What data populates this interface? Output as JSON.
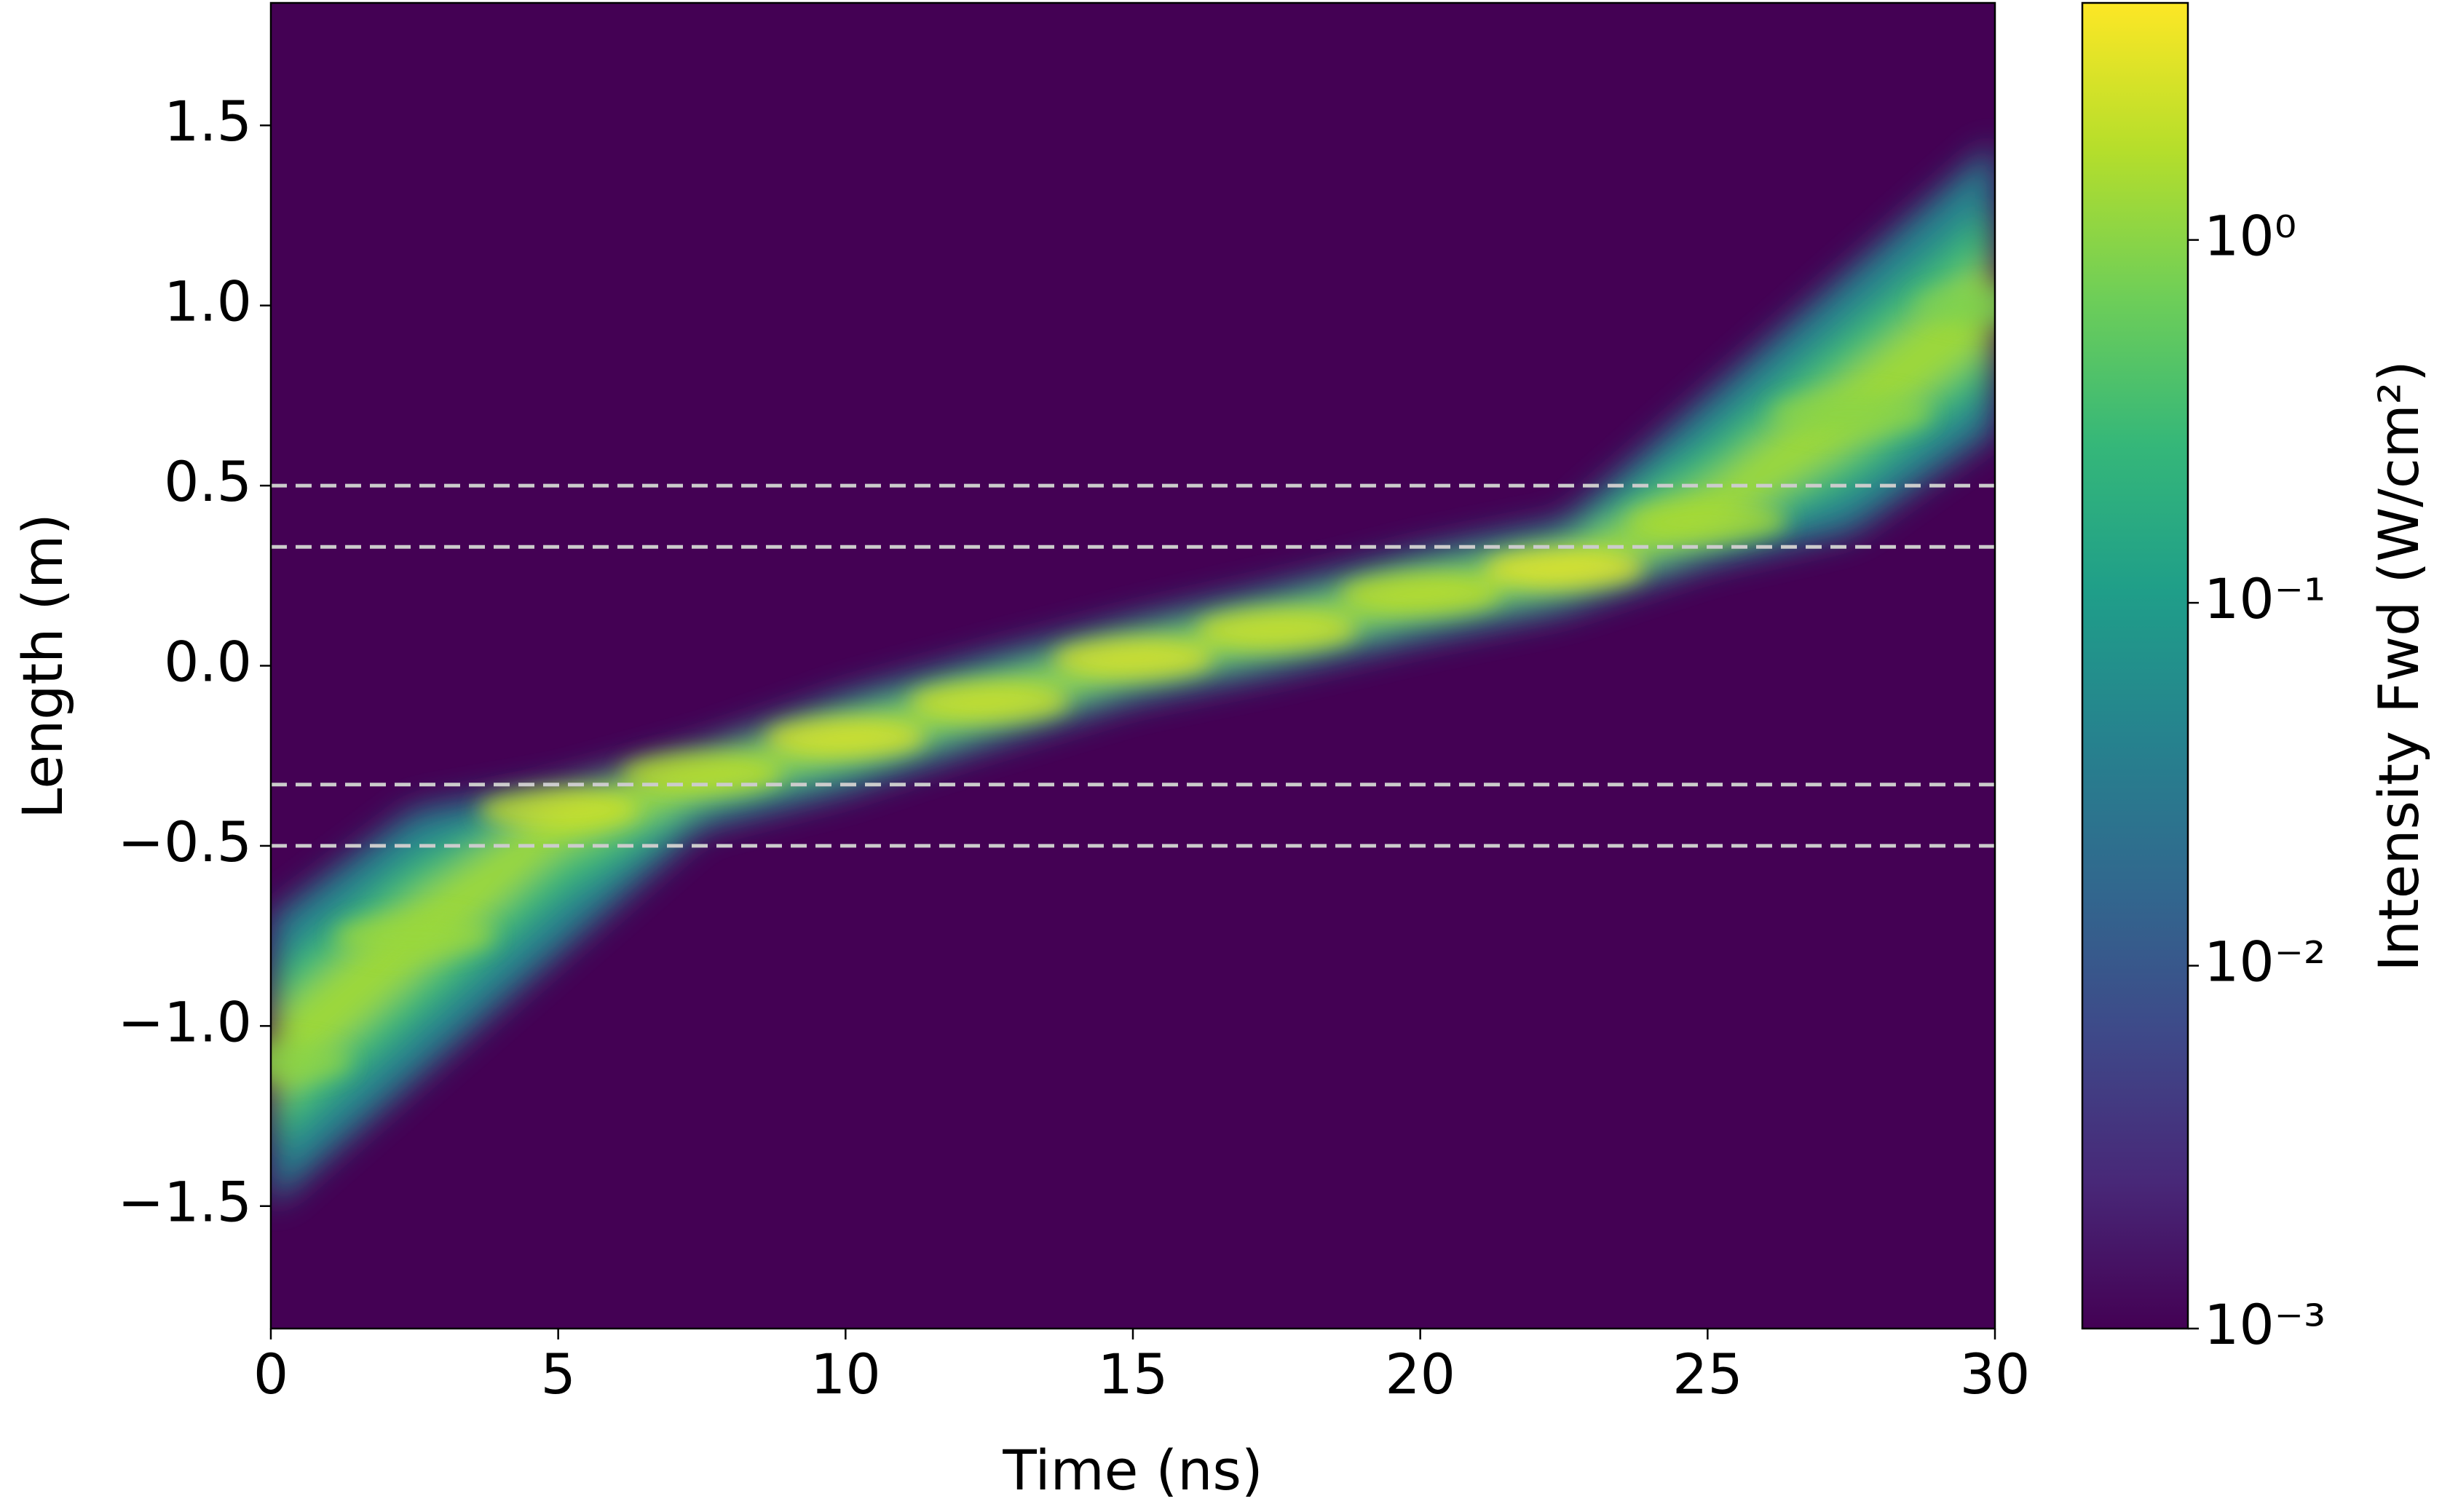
{
  "chart_data": {
    "type": "heatmap",
    "x_label": "Time (ns)",
    "y_label": "Length (m)",
    "colorbar_label": "Intensity Fwd (W/cm²)",
    "xlim": [
      0,
      30
    ],
    "ylim": [
      -1.84,
      1.84
    ],
    "xticks": [
      0,
      5,
      10,
      15,
      20,
      25,
      30
    ],
    "yticks": [
      {
        "value": -1.5,
        "label": "−1.5"
      },
      {
        "value": -1.0,
        "label": "−1.0"
      },
      {
        "value": -0.5,
        "label": "−0.5"
      },
      {
        "value": 0,
        "label": "0.0"
      },
      0.5,
      {
        "value": 1.0,
        "label": "1.0"
      },
      1.5
    ],
    "x": [
      0,
      2.5,
      5,
      7.5,
      10,
      12.5,
      15,
      17.5,
      20,
      22.5,
      25,
      27.5,
      30
    ],
    "center": [
      -1.1,
      -0.75,
      -0.4,
      -0.3,
      -0.2,
      -0.1,
      0.02,
      0.1,
      0.2,
      0.27,
      0.4,
      0.7,
      1.0
    ],
    "lower": [
      -1.5,
      -1.15,
      -0.8,
      -0.45,
      -0.35,
      -0.22,
      -0.1,
      -0.02,
      0.07,
      0.15,
      0.28,
      0.37,
      0.65
    ],
    "upper": [
      -0.7,
      -0.4,
      -0.33,
      -0.22,
      -0.08,
      0.03,
      0.13,
      0.22,
      0.32,
      0.4,
      0.75,
      1.1,
      1.45
    ],
    "peak": [
      1.0,
      1.2,
      2.5,
      2.0,
      3.0,
      2.5,
      3.0,
      2.5,
      2.0,
      3.5,
      1.5,
      1.0,
      0.8
    ],
    "colormap": "viridis",
    "color_scale": "log",
    "clim": [
      0.001,
      4.5
    ],
    "cticks": [
      {
        "value": 0.001,
        "label": "10⁻³"
      },
      {
        "value": 0.01,
        "label": "10⁻²"
      },
      {
        "value": 0.1,
        "label": "10⁻¹"
      },
      {
        "value": 1,
        "label": "10⁰"
      }
    ],
    "hlines": [
      0.5,
      0.33,
      -0.33,
      -0.5
    ],
    "hline_color": "#cccccc"
  }
}
